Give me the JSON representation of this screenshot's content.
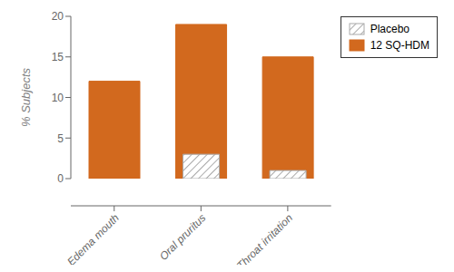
{
  "chart_data": {
    "type": "bar",
    "ylabel": "% Subjects",
    "categories": [
      "Edema mouth",
      "Oral pruritus",
      "Throat irritation"
    ],
    "series": [
      {
        "name": "Placebo",
        "color": "#aaaaaa",
        "values": [
          0,
          3,
          1
        ]
      },
      {
        "name": "12 SQ-HDM",
        "color": "#D2691E",
        "values": [
          12,
          19,
          15
        ]
      }
    ],
    "ylim": [
      0,
      20
    ],
    "yticks": [
      0,
      5,
      10,
      15,
      20
    ],
    "grid": false,
    "legend": "upper right"
  }
}
